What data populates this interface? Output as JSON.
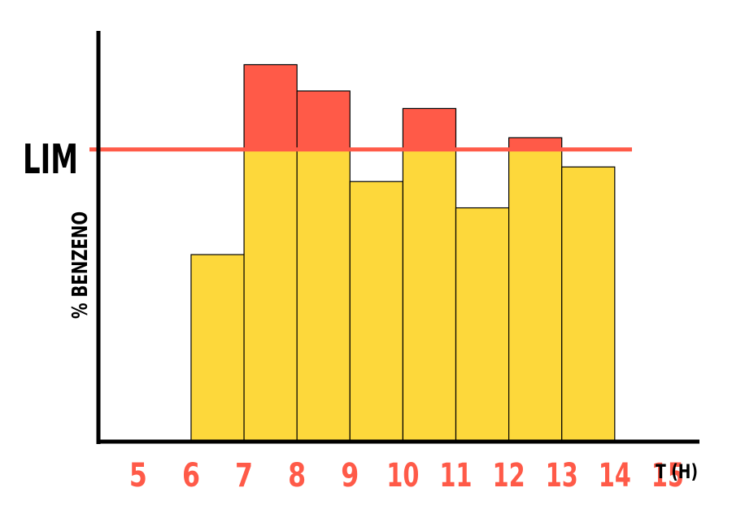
{
  "chart_data": {
    "type": "bar",
    "title": "",
    "xlabel": "T (H)",
    "ylabel": "% BENZENO",
    "limit_label": "LIM",
    "x_ticks": [
      "5",
      "6",
      "7",
      "8",
      "9",
      "10",
      "11",
      "12",
      "13",
      "14",
      "15"
    ],
    "bars": [
      {
        "from": 6,
        "to": 7,
        "value": 0.64
      },
      {
        "from": 7,
        "to": 8,
        "value": 1.29
      },
      {
        "from": 8,
        "to": 9,
        "value": 1.2
      },
      {
        "from": 9,
        "to": 10,
        "value": 0.89
      },
      {
        "from": 10,
        "to": 11,
        "value": 1.14
      },
      {
        "from": 11,
        "to": 12,
        "value": 0.8
      },
      {
        "from": 12,
        "to": 13,
        "value": 1.04
      },
      {
        "from": 13,
        "to": 14,
        "value": 0.94
      }
    ],
    "limit_value": 1.0,
    "ylim": [
      0,
      1.4
    ],
    "xlim": [
      4.25,
      15.6
    ],
    "grid": false,
    "colors": {
      "below_limit": "#FDD83B",
      "above_limit": "#FF5A48",
      "limit_line": "#FF5A48",
      "tick_labels": "#FF5A48",
      "axis": "#000000"
    }
  }
}
